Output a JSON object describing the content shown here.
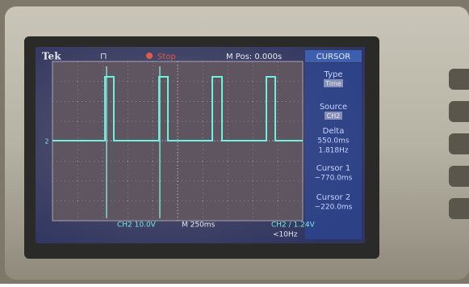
{
  "header": {
    "brand": "Tek",
    "trigger_icon": "⊓",
    "status": "Stop",
    "position": "M Pos: 0.000s"
  },
  "menu": {
    "title": "CURSOR",
    "items": [
      {
        "label": "Type",
        "value": "Time"
      },
      {
        "label": "Source",
        "value": "CH2"
      },
      {
        "label": "Delta",
        "lines": [
          "550.0ms",
          "1.818Hz"
        ]
      },
      {
        "label": "Cursor 1",
        "lines": [
          "−770.0ms"
        ]
      },
      {
        "label": "Cursor 2",
        "lines": [
          "−220.0ms"
        ]
      }
    ]
  },
  "channel_marker": "2",
  "footer": {
    "channel_scale": "CH2  10.0V",
    "time_scale": "M 250ms",
    "trigger": "CH2 / 1.24V",
    "frequency": "<10Hz"
  }
}
